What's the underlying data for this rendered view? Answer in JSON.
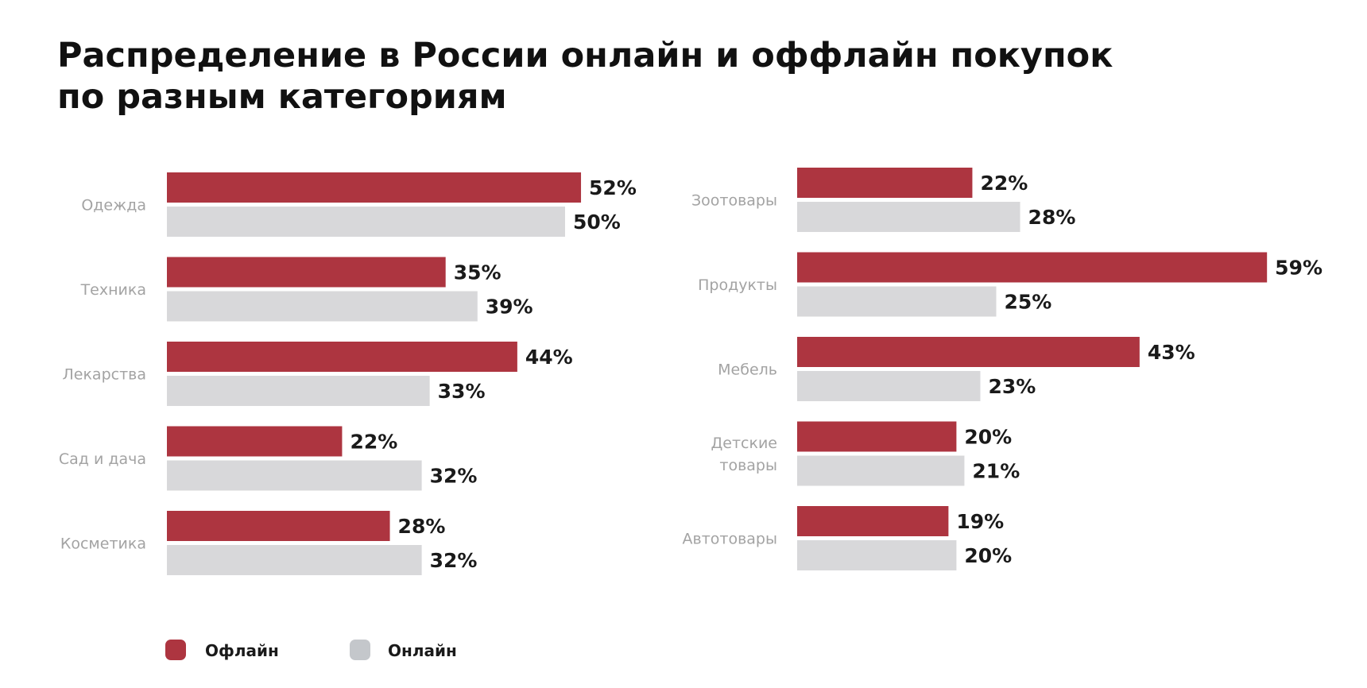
{
  "chart_data": {
    "type": "bar",
    "orientation": "horizontal",
    "title": "Распределение в России онлайн и оффлайн покупок по разным категориям",
    "title_lines": [
      "Распределение в России онлайн и оффлайн покупок",
      "по разным категориям"
    ],
    "value_suffix": "%",
    "colors": {
      "offline": "#ad3540",
      "online": "#d8d8da",
      "legend_online": "#c4c7cb"
    },
    "legend": [
      {
        "key": "offline",
        "label": "Офлайн"
      },
      {
        "key": "online",
        "label": "Онлайн"
      }
    ],
    "panels": [
      {
        "categories": [
          {
            "label_lines": [
              "Одежда"
            ],
            "offline": 52,
            "online": 50
          },
          {
            "label_lines": [
              "Техника"
            ],
            "offline": 35,
            "online": 39
          },
          {
            "label_lines": [
              "Лекарства"
            ],
            "offline": 44,
            "online": 33
          },
          {
            "label_lines": [
              "Сад и дача"
            ],
            "offline": 22,
            "online": 32
          },
          {
            "label_lines": [
              "Косметика"
            ],
            "offline": 28,
            "online": 32
          }
        ]
      },
      {
        "categories": [
          {
            "label_lines": [
              "Зоотовары"
            ],
            "offline": 22,
            "online": 28
          },
          {
            "label_lines": [
              "Продукты"
            ],
            "offline": 59,
            "online": 25
          },
          {
            "label_lines": [
              "Мебель"
            ],
            "offline": 43,
            "online": 23
          },
          {
            "label_lines": [
              "Детские",
              "товары"
            ],
            "offline": 20,
            "online": 21
          },
          {
            "label_lines": [
              "Автотовары"
            ],
            "offline": 19,
            "online": 20
          }
        ]
      }
    ]
  }
}
